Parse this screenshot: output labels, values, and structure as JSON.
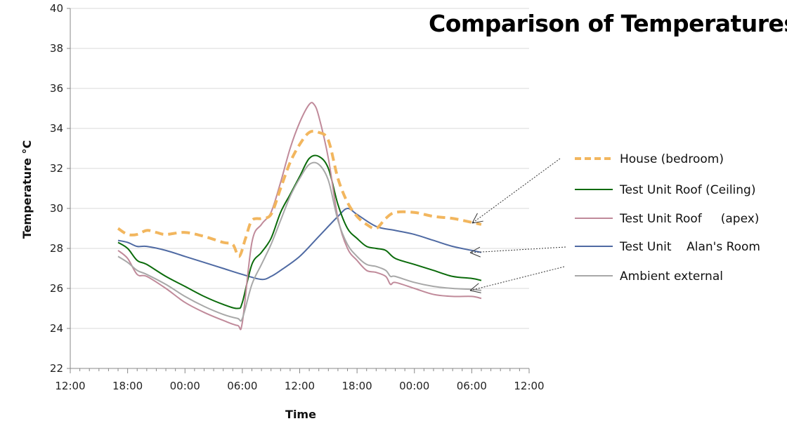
{
  "chart_data": {
    "type": "line",
    "title": "Comparison of Temperatures",
    "xlabel": "Time",
    "ylabel": "Temperature °C",
    "ylim": [
      22,
      40
    ],
    "yticks": [
      "22",
      "24",
      "26",
      "28",
      "30",
      "32",
      "34",
      "36",
      "38",
      "40"
    ],
    "xticks": [
      "12:00",
      "18:00",
      "00:00",
      "06:00",
      "12:00",
      "18:00",
      "00:00",
      "06:00",
      "12:00"
    ],
    "grid": "horizontal",
    "legend_position": "right",
    "series": [
      {
        "name": "House (bedroom)",
        "color": "#f2b65e",
        "style": "dashed",
        "x": [
          "17:00",
          "18:00",
          "19:00",
          "20:00",
          "21:00",
          "22:00",
          "00:00",
          "02:00",
          "04:00",
          "05:00",
          "05:40",
          "06:20",
          "07:00",
          "08:00",
          "09:00",
          "10:00",
          "11:00",
          "12:00",
          "13:00",
          "14:00",
          "15:00",
          "16:00",
          "17:00",
          "18:00",
          "19:00",
          "20:00",
          "21:00",
          "22:00",
          "00:00",
          "02:00",
          "04:00",
          "06:00",
          "07:00"
        ],
        "y": [
          29.0,
          28.7,
          28.7,
          28.9,
          28.8,
          28.7,
          28.8,
          28.6,
          28.3,
          28.2,
          27.6,
          28.5,
          29.4,
          29.5,
          29.7,
          31.0,
          32.3,
          33.2,
          33.8,
          33.8,
          33.4,
          31.5,
          30.3,
          29.6,
          29.2,
          29.0,
          29.5,
          29.8,
          29.8,
          29.6,
          29.5,
          29.3,
          29.2
        ]
      },
      {
        "name": "Test Unit Roof (Ceiling)",
        "color": "#0b6b0b",
        "style": "solid",
        "x": [
          "17:00",
          "18:00",
          "19:00",
          "20:00",
          "22:00",
          "00:00",
          "02:00",
          "04:00",
          "05:30",
          "06:00",
          "07:00",
          "08:00",
          "09:00",
          "10:00",
          "11:00",
          "12:00",
          "13:00",
          "14:00",
          "15:00",
          "16:00",
          "17:00",
          "18:00",
          "19:00",
          "20:00",
          "21:00",
          "22:00",
          "00:00",
          "02:00",
          "04:00",
          "06:00",
          "07:00"
        ],
        "y": [
          28.3,
          28.0,
          27.4,
          27.2,
          26.6,
          26.1,
          25.6,
          25.2,
          25.0,
          25.3,
          27.2,
          27.8,
          28.5,
          29.8,
          30.7,
          31.6,
          32.5,
          32.6,
          32.0,
          30.2,
          29.0,
          28.5,
          28.1,
          28.0,
          27.9,
          27.5,
          27.2,
          26.9,
          26.6,
          26.5,
          26.4
        ]
      },
      {
        "name": "Test Unit Roof     (apex)",
        "color": "#c08a9a",
        "style": "solid",
        "x": [
          "17:00",
          "18:00",
          "19:00",
          "20:00",
          "22:00",
          "00:00",
          "02:00",
          "04:00",
          "05:30",
          "06:00",
          "07:00",
          "08:00",
          "09:00",
          "10:00",
          "11:00",
          "12:00",
          "13:00",
          "13:30",
          "14:00",
          "15:00",
          "16:00",
          "17:00",
          "18:00",
          "19:00",
          "20:00",
          "21:00",
          "21:30",
          "22:00",
          "00:00",
          "02:00",
          "04:00",
          "06:00",
          "07:00"
        ],
        "y": [
          27.9,
          27.5,
          26.7,
          26.6,
          26.0,
          25.3,
          24.8,
          24.4,
          24.15,
          24.3,
          28.3,
          29.2,
          29.8,
          31.3,
          33.0,
          34.3,
          35.2,
          35.2,
          34.6,
          32.5,
          29.5,
          28.0,
          27.4,
          26.9,
          26.8,
          26.6,
          26.2,
          26.3,
          26.0,
          25.7,
          25.6,
          25.6,
          25.5
        ]
      },
      {
        "name": "Test Unit    Alan's Room",
        "color": "#4f6aa3",
        "style": "solid",
        "x": [
          "17:00",
          "18:00",
          "19:00",
          "20:00",
          "22:00",
          "00:00",
          "02:00",
          "04:00",
          "06:00",
          "08:00",
          "09:00",
          "10:00",
          "12:00",
          "14:00",
          "16:00",
          "17:00",
          "18:00",
          "20:00",
          "22:00",
          "00:00",
          "02:00",
          "04:00",
          "06:00",
          "07:00"
        ],
        "y": [
          28.4,
          28.3,
          28.1,
          28.1,
          27.9,
          27.6,
          27.3,
          27.0,
          26.7,
          26.45,
          26.6,
          26.9,
          27.6,
          28.6,
          29.6,
          30.0,
          29.7,
          29.1,
          28.9,
          28.7,
          28.4,
          28.1,
          27.9,
          27.8
        ]
      },
      {
        "name": "Ambient external",
        "color": "#a8a8a8",
        "style": "solid",
        "x": [
          "17:00",
          "18:00",
          "19:00",
          "20:00",
          "22:00",
          "00:00",
          "02:00",
          "04:00",
          "05:30",
          "06:00",
          "07:00",
          "08:00",
          "09:00",
          "10:00",
          "11:00",
          "12:00",
          "13:00",
          "14:00",
          "15:00",
          "16:00",
          "17:00",
          "18:00",
          "19:00",
          "20:00",
          "21:00",
          "21:30",
          "22:00",
          "00:00",
          "02:00",
          "04:00",
          "06:00",
          "07:00"
        ],
        "y": [
          27.6,
          27.3,
          26.9,
          26.7,
          26.2,
          25.6,
          25.1,
          24.7,
          24.5,
          24.5,
          26.2,
          27.2,
          28.2,
          29.4,
          30.6,
          31.5,
          32.2,
          32.2,
          31.4,
          29.4,
          28.2,
          27.6,
          27.2,
          27.1,
          26.9,
          26.6,
          26.6,
          26.3,
          26.1,
          26.0,
          25.95,
          25.9
        ]
      }
    ]
  }
}
